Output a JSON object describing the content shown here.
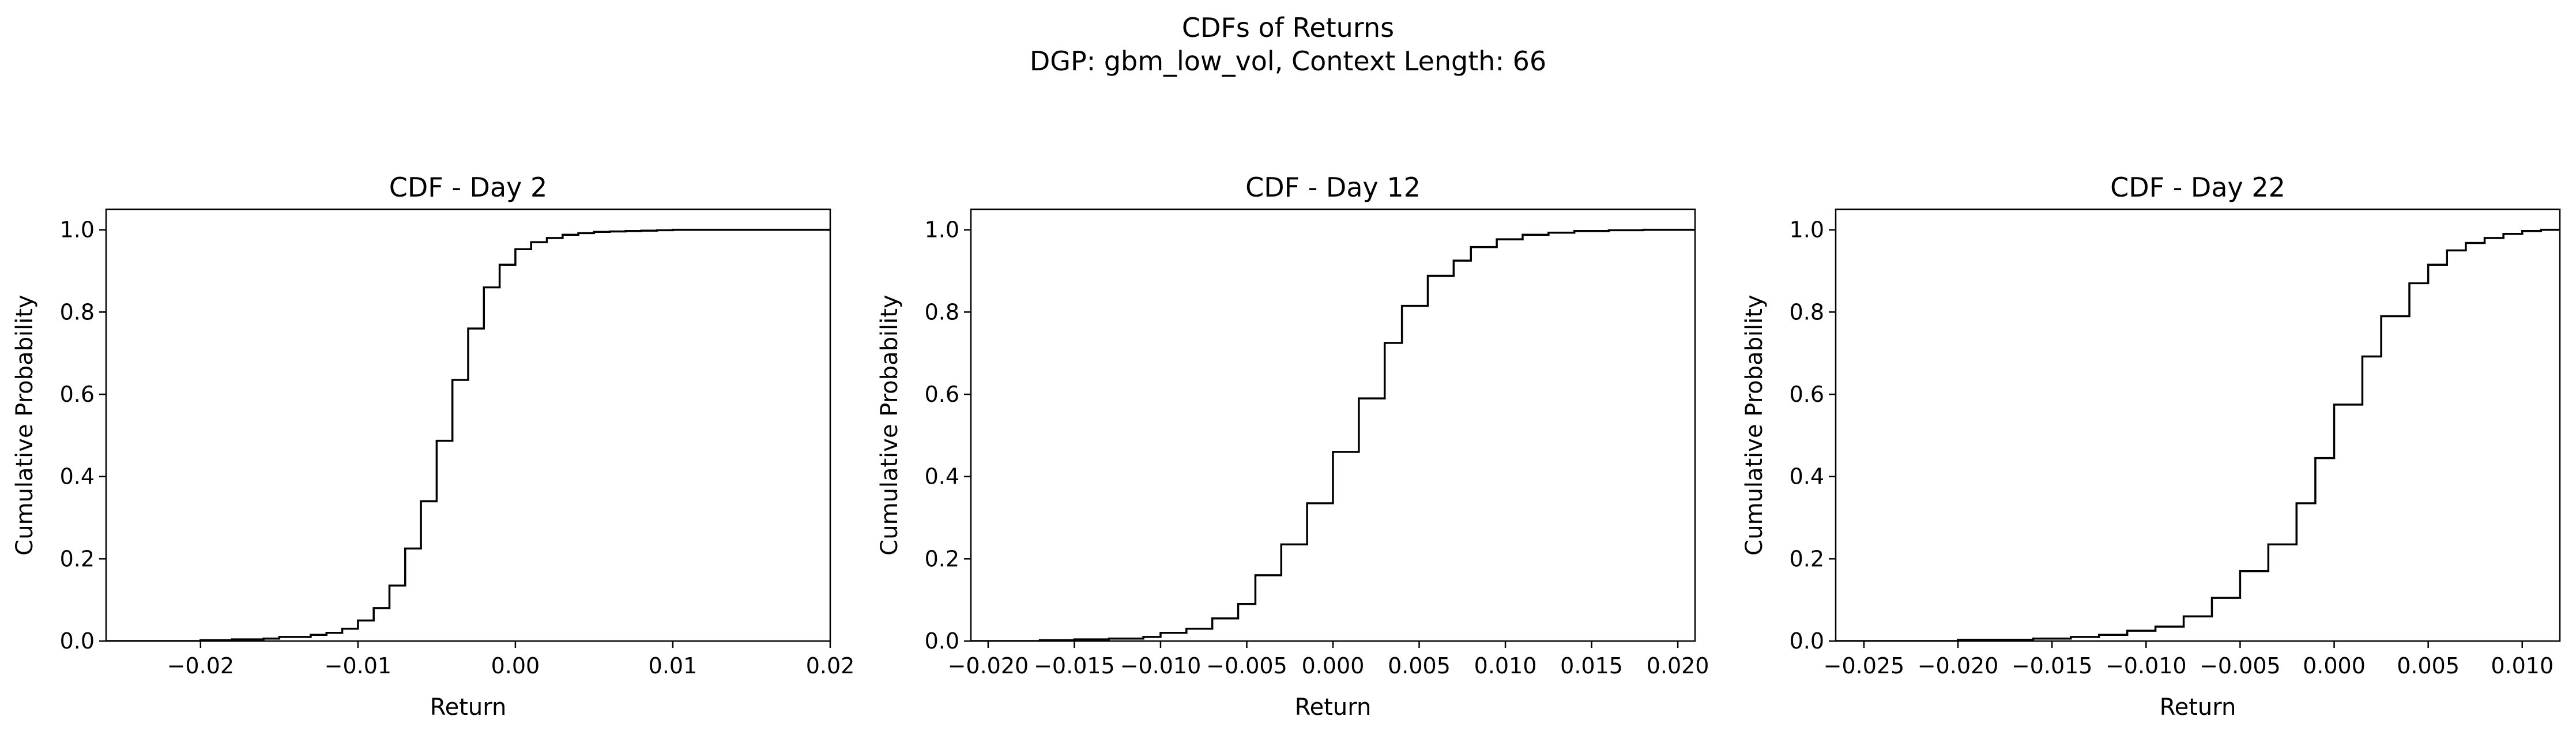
{
  "figure": {
    "title_line1": "CDFs of Returns",
    "title_line2": "DGP: gbm_low_vol, Context Length: 66"
  },
  "chart_data": [
    {
      "type": "step",
      "title": "CDF - Day 2",
      "xlabel": "Return",
      "ylabel": "Cumulative Probability",
      "xlim": [
        -0.026,
        0.02
      ],
      "ylim": [
        0,
        1.05
      ],
      "xticks": [
        -0.02,
        -0.01,
        0.0,
        0.01,
        0.02
      ],
      "xtick_labels": [
        "−0.02",
        "−0.01",
        "0.00",
        "0.01",
        "0.02"
      ],
      "yticks": [
        0,
        0.2,
        0.4,
        0.6,
        0.8,
        1.0
      ],
      "ytick_labels": [
        "0.0",
        "0.2",
        "0.4",
        "0.6",
        "0.8",
        "1.0"
      ],
      "line_color": "#000000",
      "x": [
        -0.026,
        -0.02,
        -0.018,
        -0.016,
        -0.015,
        -0.013,
        -0.012,
        -0.011,
        -0.01,
        -0.009,
        -0.008,
        -0.007,
        -0.006,
        -0.005,
        -0.004,
        -0.003,
        -0.002,
        -0.001,
        0.0,
        0.001,
        0.002,
        0.003,
        0.004,
        0.005,
        0.006,
        0.007,
        0.008,
        0.009,
        0.01,
        0.012,
        0.014,
        0.016,
        0.018,
        0.02
      ],
      "y": [
        0.0,
        0.002,
        0.004,
        0.006,
        0.01,
        0.015,
        0.02,
        0.03,
        0.05,
        0.08,
        0.135,
        0.225,
        0.34,
        0.487,
        0.635,
        0.76,
        0.86,
        0.915,
        0.953,
        0.97,
        0.98,
        0.988,
        0.992,
        0.995,
        0.996,
        0.997,
        0.998,
        0.999,
        1.0,
        1.0,
        1.0,
        1.0,
        1.0,
        1.0
      ],
      "grid": false
    },
    {
      "type": "step",
      "title": "CDF - Day 12",
      "xlabel": "Return",
      "ylabel": "Cumulative Probability",
      "xlim": [
        -0.021,
        0.021
      ],
      "ylim": [
        0,
        1.05
      ],
      "xticks": [
        -0.02,
        -0.015,
        -0.01,
        -0.005,
        0.0,
        0.005,
        0.01,
        0.015,
        0.02
      ],
      "xtick_labels": [
        "−0.020",
        "−0.015",
        "−0.010",
        "−0.005",
        "0.000",
        "0.005",
        "0.010",
        "0.015",
        "0.020"
      ],
      "yticks": [
        0,
        0.2,
        0.4,
        0.6,
        0.8,
        1.0
      ],
      "ytick_labels": [
        "0.0",
        "0.2",
        "0.4",
        "0.6",
        "0.8",
        "1.0"
      ],
      "line_color": "#000000",
      "x": [
        -0.021,
        -0.017,
        -0.015,
        -0.013,
        -0.011,
        -0.01,
        -0.0085,
        -0.007,
        -0.0055,
        -0.0045,
        -0.003,
        -0.0015,
        0.0,
        0.0015,
        0.003,
        0.004,
        0.0055,
        0.007,
        0.008,
        0.0095,
        0.011,
        0.0125,
        0.014,
        0.016,
        0.018,
        0.02
      ],
      "y": [
        0.0,
        0.002,
        0.004,
        0.006,
        0.01,
        0.02,
        0.03,
        0.055,
        0.09,
        0.16,
        0.235,
        0.335,
        0.46,
        0.59,
        0.725,
        0.815,
        0.888,
        0.925,
        0.958,
        0.977,
        0.988,
        0.993,
        0.997,
        0.999,
        1.0,
        1.0
      ],
      "grid": false
    },
    {
      "type": "step",
      "title": "CDF - Day 22",
      "xlabel": "Return",
      "ylabel": "Cumulative Probability",
      "xlim": [
        -0.0265,
        0.012
      ],
      "ylim": [
        0,
        1.05
      ],
      "xticks": [
        -0.025,
        -0.02,
        -0.015,
        -0.01,
        -0.005,
        0.0,
        0.005,
        0.01
      ],
      "xtick_labels": [
        "−0.025",
        "−0.020",
        "−0.015",
        "−0.010",
        "−0.005",
        "0.000",
        "0.005",
        "0.010"
      ],
      "yticks": [
        0,
        0.2,
        0.4,
        0.6,
        0.8,
        1.0
      ],
      "ytick_labels": [
        "0.0",
        "0.2",
        "0.4",
        "0.6",
        "0.8",
        "1.0"
      ],
      "line_color": "#000000",
      "x": [
        -0.0265,
        -0.02,
        -0.016,
        -0.014,
        -0.0125,
        -0.011,
        -0.0095,
        -0.008,
        -0.0065,
        -0.005,
        -0.0035,
        -0.002,
        -0.001,
        0.0,
        0.0015,
        0.0025,
        0.004,
        0.005,
        0.006,
        0.007,
        0.008,
        0.009,
        0.01,
        0.011,
        0.012
      ],
      "y": [
        0.0,
        0.003,
        0.006,
        0.01,
        0.015,
        0.025,
        0.035,
        0.06,
        0.105,
        0.17,
        0.235,
        0.335,
        0.445,
        0.575,
        0.692,
        0.79,
        0.87,
        0.915,
        0.95,
        0.968,
        0.98,
        0.99,
        0.997,
        1.0,
        1.0
      ],
      "grid": false
    }
  ]
}
